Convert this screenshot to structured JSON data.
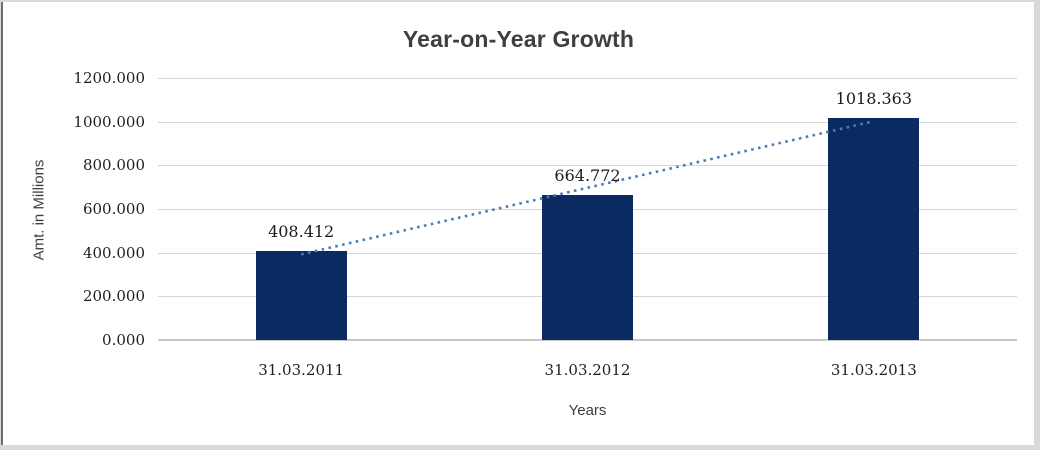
{
  "chart_data": {
    "type": "bar",
    "title": "Year-on-Year Growth",
    "xlabel": "Years",
    "ylabel": "Amt. in Millions",
    "categories": [
      "31.03.2011",
      "31.03.2012",
      "31.03.2013"
    ],
    "values": [
      408.412,
      664.772,
      1018.363
    ],
    "data_labels": [
      "408.412",
      "664.772",
      "1018.363"
    ],
    "y_ticks": [
      {
        "value": 1200,
        "label": "1200.000"
      },
      {
        "value": 1000,
        "label": "1000.000"
      },
      {
        "value": 800,
        "label": "800.000"
      },
      {
        "value": 600,
        "label": "600.000"
      },
      {
        "value": 400,
        "label": "400.000"
      },
      {
        "value": 200,
        "label": "200.000"
      },
      {
        "value": 0,
        "label": "0.000"
      }
    ],
    "ylim": [
      0,
      1200
    ],
    "grid": true,
    "legend": false,
    "bar_color": "#0b2a61",
    "trendline": {
      "type": "linear",
      "style": "dotted",
      "color": "#4a7ebb"
    },
    "colors": {
      "title": "#3f3f3f",
      "axis_titles": "#3f3f3f",
      "tick_labels": "#1f1f1f",
      "data_labels": "#1a1a1a",
      "gridline": "#d6d6d6",
      "axis_line": "#c8c8c8",
      "frame_border": "#d9d9d9",
      "frame_left_line": "#6e6e6e",
      "background": "#ffffff"
    }
  }
}
